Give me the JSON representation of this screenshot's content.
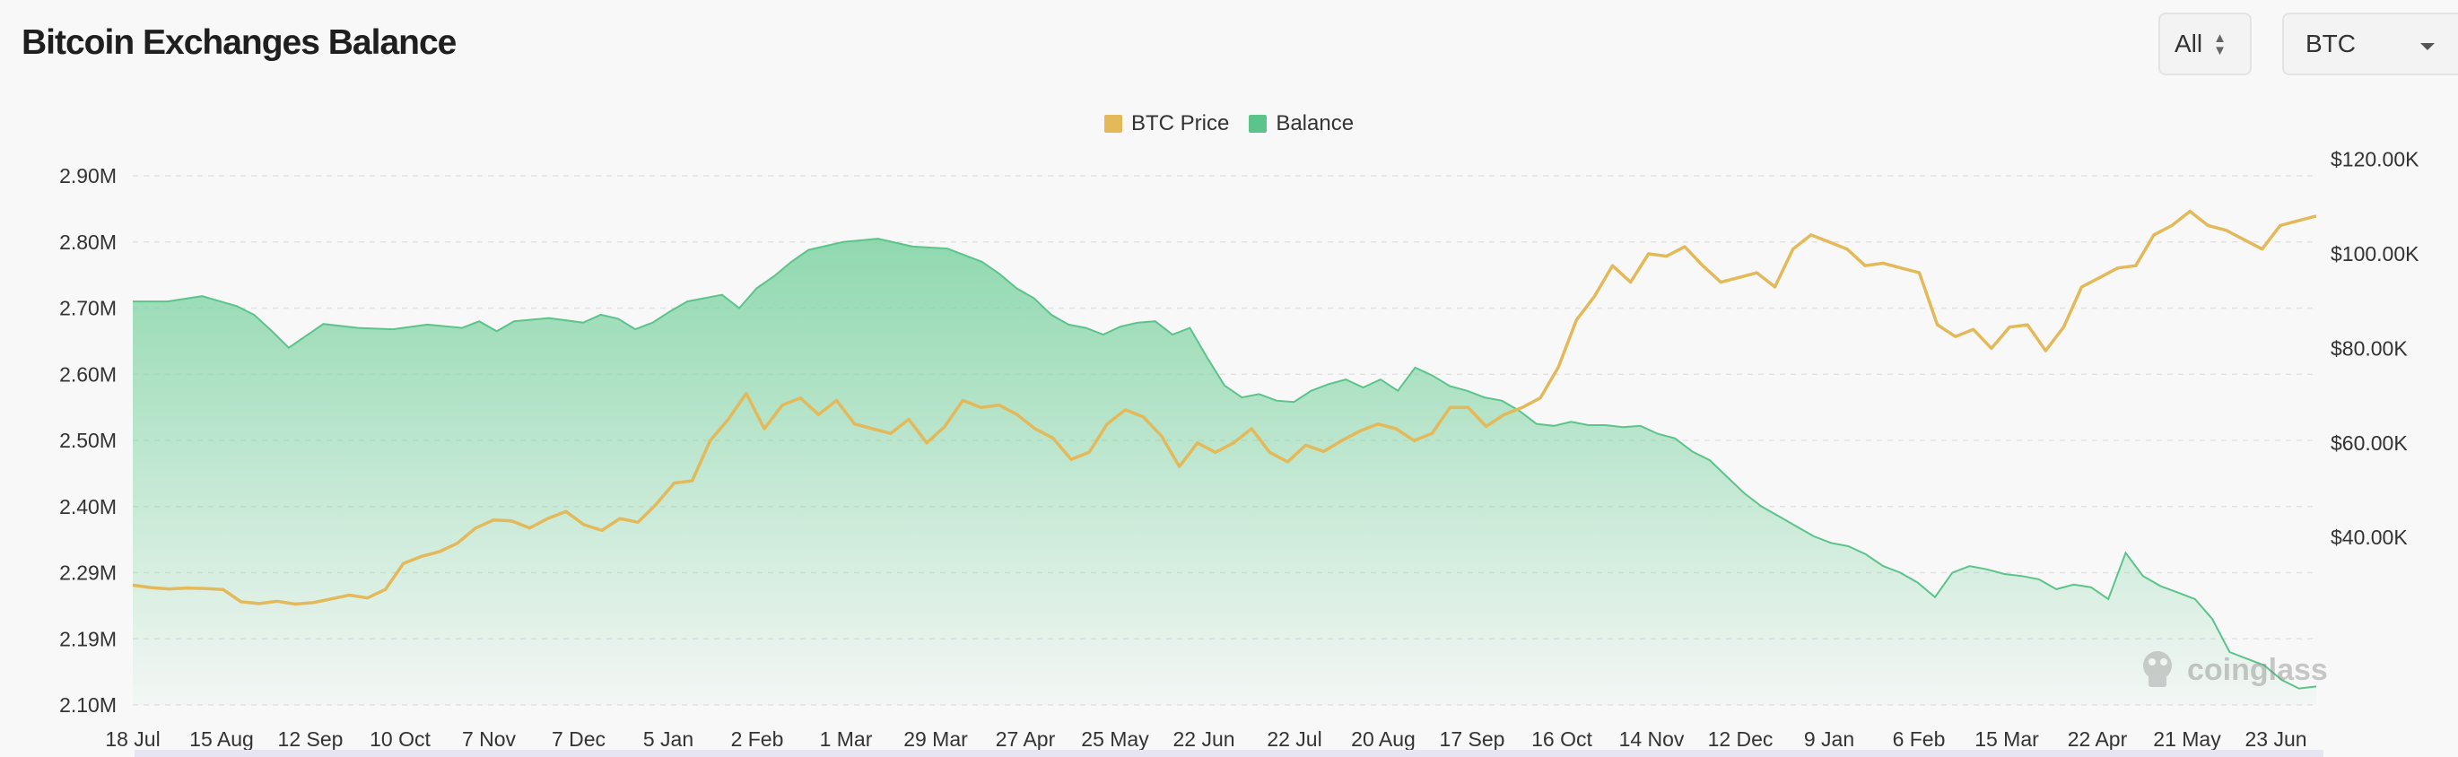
{
  "header": {
    "title": "Bitcoin Exchanges Balance"
  },
  "controls": {
    "range_label": "All",
    "asset_label": "BTC",
    "range_icon": "updown-chevron-icon",
    "asset_icon": "caret-down-icon"
  },
  "watermark": {
    "text": "coinglass",
    "icon": "coinglass-logo-icon"
  },
  "colors": {
    "price": "#e3b95a",
    "balance": "#5cc48a",
    "grid": "#e2e2e2"
  },
  "chart_data": {
    "type": "area",
    "x_labels": [
      "18 Jul",
      "15 Aug",
      "12 Sep",
      "10 Oct",
      "7 Nov",
      "7 Dec",
      "5 Jan",
      "2 Feb",
      "1 Mar",
      "29 Mar",
      "27 Apr",
      "25 May",
      "22 Jun",
      "22 Jul",
      "20 Aug",
      "17 Sep",
      "16 Oct",
      "14 Nov",
      "12 Dec",
      "9 Jan",
      "6 Feb",
      "15 Mar",
      "22 Apr",
      "21 May",
      "23 Jun"
    ],
    "y_left": {
      "ticks": [
        "2.90M",
        "2.80M",
        "2.70M",
        "2.60M",
        "2.50M",
        "2.40M",
        "2.29M",
        "2.19M",
        "2.10M"
      ],
      "range": [
        2.1,
        2.9
      ],
      "unit": "M BTC"
    },
    "y_right": {
      "ticks": [
        "$120.00K",
        "$100.00K",
        "$80.00K",
        "$60.00K",
        "$40.00K"
      ],
      "range": [
        22500,
        120000
      ],
      "unit": "USD"
    },
    "grid": true,
    "legend_position": "top-center",
    "series": [
      {
        "name": "BTC Price",
        "axis": "right",
        "kind": "line",
        "color": "#e3b95a",
        "points": [
          [
            0,
            29900
          ],
          [
            1,
            29400
          ],
          [
            2,
            29100
          ],
          [
            3,
            29300
          ],
          [
            4,
            29200
          ],
          [
            5,
            29000
          ],
          [
            6,
            26400
          ],
          [
            7,
            26000
          ],
          [
            8,
            26500
          ],
          [
            9,
            25900
          ],
          [
            10,
            26200
          ],
          [
            11,
            27000
          ],
          [
            12,
            27800
          ],
          [
            13,
            27200
          ],
          [
            14,
            29000
          ],
          [
            15,
            34500
          ],
          [
            16,
            36000
          ],
          [
            17,
            37000
          ],
          [
            18,
            38800
          ],
          [
            19,
            42000
          ],
          [
            20,
            43700
          ],
          [
            21,
            43500
          ],
          [
            22,
            42000
          ],
          [
            23,
            44000
          ],
          [
            24,
            45500
          ],
          [
            25,
            42700
          ],
          [
            26,
            41500
          ],
          [
            27,
            44000
          ],
          [
            28,
            43200
          ],
          [
            29,
            47000
          ],
          [
            30,
            51500
          ],
          [
            31,
            52000
          ],
          [
            32,
            60500
          ],
          [
            33,
            65000
          ],
          [
            34,
            70500
          ],
          [
            35,
            63000
          ],
          [
            36,
            68000
          ],
          [
            37,
            69500
          ],
          [
            38,
            66000
          ],
          [
            39,
            69000
          ],
          [
            40,
            64000
          ],
          [
            41,
            63000
          ],
          [
            42,
            62000
          ],
          [
            43,
            65000
          ],
          [
            44,
            60000
          ],
          [
            45,
            63500
          ],
          [
            46,
            69000
          ],
          [
            47,
            67500
          ],
          [
            48,
            68000
          ],
          [
            49,
            66000
          ],
          [
            50,
            63000
          ],
          [
            51,
            61000
          ],
          [
            52,
            56500
          ],
          [
            53,
            58000
          ],
          [
            54,
            64000
          ],
          [
            55,
            67000
          ],
          [
            56,
            65500
          ],
          [
            57,
            61500
          ],
          [
            58,
            55000
          ],
          [
            59,
            60000
          ],
          [
            60,
            58000
          ],
          [
            61,
            60000
          ],
          [
            62,
            63000
          ],
          [
            63,
            58000
          ],
          [
            64,
            56000
          ],
          [
            65,
            59500
          ],
          [
            66,
            58200
          ],
          [
            67,
            60500
          ],
          [
            68,
            62500
          ],
          [
            69,
            64000
          ],
          [
            70,
            63000
          ],
          [
            71,
            60500
          ],
          [
            72,
            62000
          ],
          [
            73,
            67500
          ],
          [
            74,
            67500
          ],
          [
            75,
            63500
          ],
          [
            76,
            66000
          ],
          [
            77,
            67500
          ],
          [
            78,
            69500
          ],
          [
            79,
            76000
          ],
          [
            80,
            86000
          ],
          [
            81,
            91000
          ],
          [
            82,
            97500
          ],
          [
            83,
            94000
          ],
          [
            84,
            100000
          ],
          [
            85,
            99500
          ],
          [
            86,
            101500
          ],
          [
            87,
            97500
          ],
          [
            88,
            94000
          ],
          [
            89,
            95000
          ],
          [
            90,
            96000
          ],
          [
            91,
            93000
          ],
          [
            92,
            101000
          ],
          [
            93,
            104000
          ],
          [
            94,
            102500
          ],
          [
            95,
            101000
          ],
          [
            96,
            97500
          ],
          [
            97,
            98000
          ],
          [
            98,
            97000
          ],
          [
            99,
            96000
          ],
          [
            100,
            85000
          ],
          [
            101,
            82500
          ],
          [
            102,
            84000
          ],
          [
            103,
            80000
          ],
          [
            104,
            84500
          ],
          [
            105,
            85000
          ],
          [
            106,
            79500
          ],
          [
            107,
            84500
          ],
          [
            108,
            93000
          ],
          [
            109,
            95000
          ],
          [
            110,
            97000
          ],
          [
            111,
            97500
          ],
          [
            112,
            104000
          ],
          [
            113,
            106000
          ],
          [
            114,
            109000
          ],
          [
            115,
            106000
          ],
          [
            116,
            105000
          ],
          [
            117,
            103000
          ],
          [
            118,
            101000
          ],
          [
            119,
            106000
          ],
          [
            120,
            107000
          ],
          [
            121,
            108000
          ]
        ]
      },
      {
        "name": "Balance",
        "axis": "left",
        "kind": "area",
        "color": "#5cc48a",
        "points": [
          [
            0,
            2.71
          ],
          [
            2,
            2.71
          ],
          [
            4,
            2.718
          ],
          [
            6,
            2.703
          ],
          [
            7,
            2.69
          ],
          [
            8,
            2.666
          ],
          [
            9,
            2.64
          ],
          [
            11,
            2.676
          ],
          [
            13,
            2.67
          ],
          [
            15,
            2.668
          ],
          [
            17,
            2.675
          ],
          [
            19,
            2.67
          ],
          [
            20,
            2.68
          ],
          [
            21,
            2.665
          ],
          [
            22,
            2.68
          ],
          [
            24,
            2.685
          ],
          [
            26,
            2.678
          ],
          [
            27,
            2.69
          ],
          [
            28,
            2.684
          ],
          [
            29,
            2.668
          ],
          [
            30,
            2.678
          ],
          [
            31,
            2.695
          ],
          [
            32,
            2.71
          ],
          [
            34,
            2.72
          ],
          [
            35,
            2.7
          ],
          [
            36,
            2.73
          ],
          [
            37,
            2.748
          ],
          [
            38,
            2.77
          ],
          [
            39,
            2.788
          ],
          [
            41,
            2.8
          ],
          [
            43,
            2.805
          ],
          [
            45,
            2.793
          ],
          [
            47,
            2.79
          ],
          [
            49,
            2.77
          ],
          [
            50,
            2.752
          ],
          [
            51,
            2.73
          ],
          [
            52,
            2.715
          ],
          [
            53,
            2.69
          ],
          [
            54,
            2.675
          ],
          [
            55,
            2.67
          ],
          [
            56,
            2.66
          ],
          [
            57,
            2.672
          ],
          [
            58,
            2.678
          ],
          [
            59,
            2.68
          ],
          [
            60,
            2.66
          ],
          [
            61,
            2.67
          ],
          [
            62,
            2.625
          ],
          [
            63,
            2.583
          ],
          [
            64,
            2.565
          ],
          [
            65,
            2.57
          ],
          [
            66,
            2.56
          ],
          [
            67,
            2.558
          ],
          [
            68,
            2.575
          ],
          [
            69,
            2.585
          ],
          [
            70,
            2.592
          ],
          [
            71,
            2.58
          ],
          [
            72,
            2.592
          ],
          [
            73,
            2.575
          ],
          [
            74,
            2.61
          ],
          [
            75,
            2.598
          ],
          [
            76,
            2.582
          ],
          [
            77,
            2.575
          ],
          [
            78,
            2.565
          ],
          [
            79,
            2.56
          ],
          [
            80,
            2.545
          ],
          [
            81,
            2.525
          ],
          [
            82,
            2.522
          ],
          [
            83,
            2.528
          ],
          [
            84,
            2.523
          ],
          [
            85,
            2.523
          ],
          [
            86,
            2.52
          ],
          [
            87,
            2.522
          ],
          [
            88,
            2.51
          ],
          [
            89,
            2.503
          ],
          [
            90,
            2.483
          ],
          [
            91,
            2.47
          ],
          [
            92,
            2.445
          ],
          [
            93,
            2.42
          ],
          [
            94,
            2.4
          ],
          [
            95,
            2.385
          ],
          [
            96,
            2.37
          ],
          [
            97,
            2.355
          ],
          [
            98,
            2.345
          ],
          [
            99,
            2.34
          ],
          [
            100,
            2.328
          ],
          [
            101,
            2.31
          ],
          [
            102,
            2.3
          ],
          [
            103,
            2.285
          ],
          [
            104,
            2.263
          ],
          [
            105,
            2.3
          ],
          [
            106,
            2.31
          ],
          [
            107,
            2.305
          ],
          [
            108,
            2.298
          ],
          [
            109,
            2.295
          ],
          [
            110,
            2.29
          ],
          [
            111,
            2.275
          ],
          [
            112,
            2.282
          ],
          [
            113,
            2.278
          ],
          [
            114,
            2.26
          ],
          [
            115,
            2.33
          ],
          [
            116,
            2.295
          ],
          [
            117,
            2.28
          ],
          [
            118,
            2.27
          ],
          [
            119,
            2.26
          ],
          [
            120,
            2.23
          ],
          [
            121,
            2.18
          ],
          [
            122,
            2.17
          ],
          [
            123,
            2.16
          ],
          [
            124,
            2.138
          ],
          [
            125,
            2.125
          ],
          [
            126,
            2.128
          ]
        ]
      }
    ]
  }
}
